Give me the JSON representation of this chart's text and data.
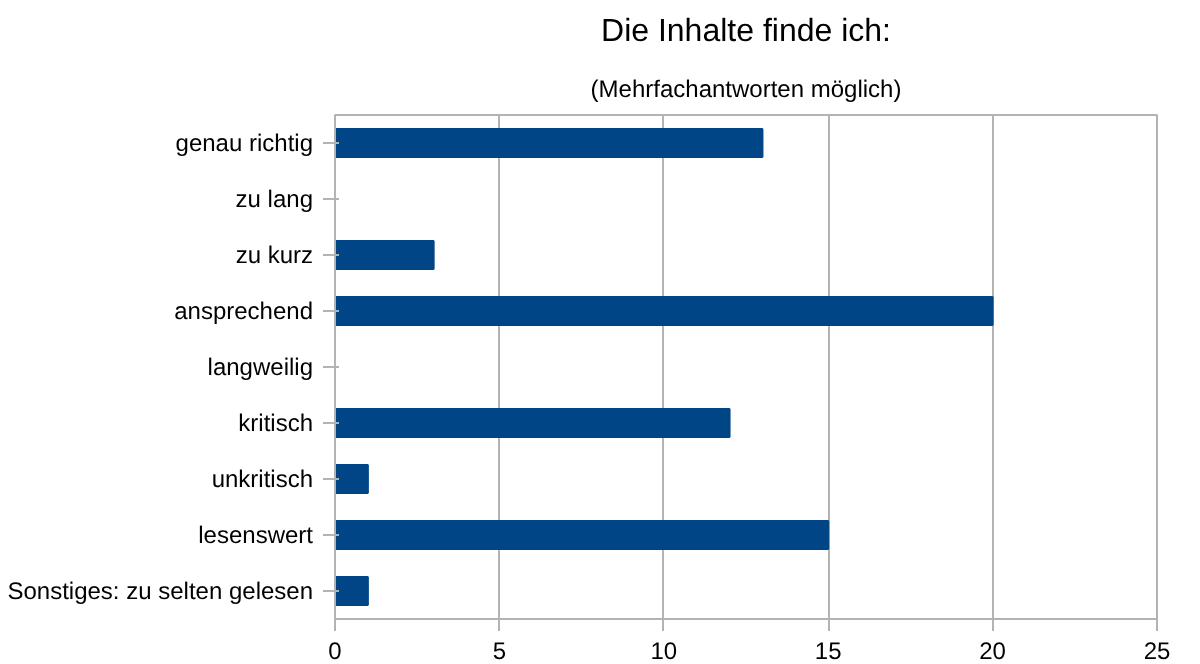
{
  "chart_data": {
    "type": "bar",
    "orientation": "horizontal",
    "title": "Die Inhalte finde ich:",
    "subtitle": "(Mehrfachantworten möglich)",
    "categories": [
      "genau richtig",
      "zu lang",
      "zu kurz",
      "ansprechend",
      "langweilig",
      "kritisch",
      "unkritisch",
      "lesenswert",
      "Sonstiges: zu selten gelesen"
    ],
    "values": [
      13,
      0,
      3,
      20,
      0,
      12,
      1,
      15,
      1
    ],
    "color": "#004586",
    "xlim": [
      0,
      25
    ],
    "xticks": [
      0,
      5,
      10,
      15,
      20,
      25
    ],
    "grid": "x"
  }
}
